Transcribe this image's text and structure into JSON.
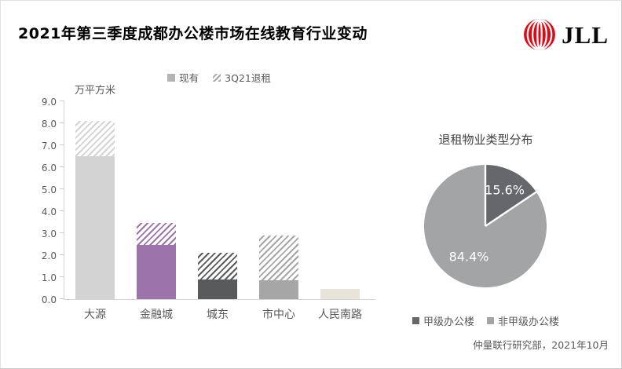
{
  "header": {
    "title": "2021年第三季度成都办公楼市场在线教育行业变动",
    "logo": {
      "brand": "JLL",
      "icon": "jll-globe-icon",
      "brand_color": "#e30613"
    }
  },
  "footer": {
    "source": "仲量联行研究部，2021年10月"
  },
  "chart_data": [
    {
      "type": "bar",
      "stacked": true,
      "unit_label": "万平方米",
      "legend_position": "top",
      "legend": [
        {
          "label": "现有",
          "swatch": "solid",
          "color": "#b3b3b3"
        },
        {
          "label": "3Q21退租",
          "swatch": "hatch",
          "color": "#a6a6a6"
        }
      ],
      "categories": [
        "大源",
        "金融城",
        "城东",
        "市中心",
        "人民南路"
      ],
      "series": [
        {
          "name": "现有",
          "values": [
            6.5,
            2.45,
            0.9,
            0.85,
            0.45
          ]
        },
        {
          "name": "3Q21退租",
          "values": [
            1.6,
            1.0,
            1.2,
            2.05,
            0
          ]
        }
      ],
      "bar_colors": [
        "#d3d3d4",
        "#9c73aa",
        "#595a5c",
        "#a6a6a7",
        "#e8e4da"
      ],
      "hatch_style": "diagonal-forward-slash",
      "ylim": [
        0,
        9
      ],
      "yticks": [
        "0.0",
        "1.0",
        "2.0",
        "3.0",
        "4.0",
        "5.0",
        "6.0",
        "7.0",
        "8.0",
        "9.0"
      ],
      "grid": false
    },
    {
      "type": "pie",
      "title": "退租物业类型分布",
      "labels": [
        "甲级办公楼",
        "非甲级办公楼"
      ],
      "values": [
        15.6,
        84.4
      ],
      "value_labels": [
        "15.6%",
        "84.4%"
      ],
      "colors": [
        "#65676b",
        "#a3a4a6"
      ],
      "start_angle_deg": 0,
      "direction": "clockwise",
      "legend_position": "bottom"
    }
  ]
}
